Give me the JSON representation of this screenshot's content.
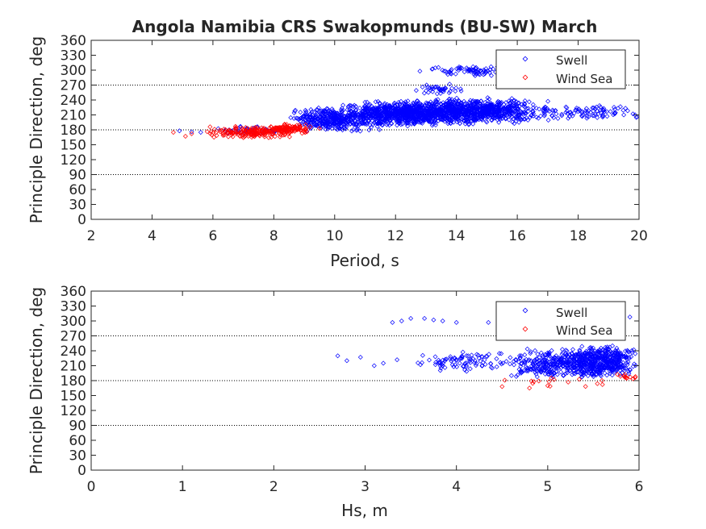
{
  "figure": {
    "title": "Angola Namibia CRS Swakopmunds (BU-SW) March"
  },
  "chart_data": [
    {
      "type": "scatter",
      "xlabel": "Period, s",
      "ylabel": "Principle Direction, deg",
      "xlim": [
        2,
        20
      ],
      "ylim": [
        0,
        360
      ],
      "xticks": [
        "2",
        "4",
        "6",
        "8",
        "10",
        "12",
        "14",
        "16",
        "18",
        "20"
      ],
      "yticks": [
        "0",
        "30",
        "60",
        "90",
        "120",
        "150",
        "180",
        "210",
        "240",
        "270",
        "300",
        "330",
        "360"
      ],
      "reference_lines_deg": [
        90,
        180,
        270
      ],
      "legend": {
        "position": "top-right",
        "entries": [
          "Swell",
          "Wind Sea"
        ]
      },
      "series": [
        {
          "name": "Swell",
          "color": "#0000ff",
          "clusters": [
            {
              "x": [
                8.5,
                11.5
              ],
              "y": [
                175,
                225
              ],
              "n": 380
            },
            {
              "x": [
                10,
                14.5
              ],
              "y": [
                185,
                240
              ],
              "n": 780
            },
            {
              "x": [
                12,
                16.5
              ],
              "y": [
                190,
                245
              ],
              "n": 620
            },
            {
              "x": [
                13,
                17.5
              ],
              "y": [
                195,
                240
              ],
              "n": 260
            },
            {
              "x": [
                16,
                20
              ],
              "y": [
                200,
                230
              ],
              "n": 90
            },
            {
              "x": [
                12.5,
                14.5
              ],
              "y": [
                250,
                275
              ],
              "n": 40
            },
            {
              "x": [
                13,
                16.5
              ],
              "y": [
                285,
                310
              ],
              "n": 90
            },
            {
              "x": [
                6,
                8.5
              ],
              "y": [
                170,
                190
              ],
              "n": 40
            }
          ],
          "points": [
            {
              "x": 5.3,
              "y": 176
            },
            {
              "x": 5.6,
              "y": 175
            },
            {
              "x": 4.9,
              "y": 178
            },
            {
              "x": 19.2,
              "y": 214
            },
            {
              "x": 19.5,
              "y": 210
            },
            {
              "x": 19.8,
              "y": 212
            },
            {
              "x": 12.8,
              "y": 298
            },
            {
              "x": 13.2,
              "y": 302
            }
          ]
        },
        {
          "name": "Wind Sea",
          "color": "#ff0000",
          "clusters": [
            {
              "x": [
                5.8,
                8.8
              ],
              "y": [
                163,
                188
              ],
              "n": 190
            },
            {
              "x": [
                7.5,
                9.3
              ],
              "y": [
                172,
                192
              ],
              "n": 110
            }
          ],
          "points": [
            {
              "x": 4.7,
              "y": 175
            },
            {
              "x": 5.1,
              "y": 167
            },
            {
              "x": 5.3,
              "y": 172
            },
            {
              "x": 9.5,
              "y": 183
            },
            {
              "x": 9.2,
              "y": 186
            }
          ]
        }
      ]
    },
    {
      "type": "scatter",
      "xlabel": "Hs, m",
      "ylabel": "Principle Direction, deg",
      "xlim": [
        0,
        6
      ],
      "ylim": [
        0,
        360
      ],
      "xticks": [
        "0",
        "1",
        "2",
        "3",
        "4",
        "5",
        "6"
      ],
      "yticks": [
        "0",
        "30",
        "60",
        "90",
        "120",
        "150",
        "180",
        "210",
        "240",
        "270",
        "300",
        "330",
        "360"
      ],
      "reference_lines_deg": [
        90,
        180,
        270
      ],
      "legend": {
        "position": "top-right",
        "entries": [
          "Swell",
          "Wind Sea"
        ]
      },
      "series": [
        {
          "name": "Swell",
          "color": "#0000ff",
          "clusters": [
            {
              "x": [
                4.5,
                6.0
              ],
              "y": [
                185,
                245
              ],
              "n": 520
            },
            {
              "x": [
                5.3,
                6.0
              ],
              "y": [
                190,
                255
              ],
              "n": 260
            },
            {
              "x": [
                3.5,
                4.6
              ],
              "y": [
                195,
                240
              ],
              "n": 90
            },
            {
              "x": [
                4.8,
                6.0
              ],
              "y": [
                260,
                310
              ],
              "n": 20
            }
          ],
          "points": [
            {
              "x": 2.7,
              "y": 230
            },
            {
              "x": 2.8,
              "y": 220
            },
            {
              "x": 2.95,
              "y": 227
            },
            {
              "x": 3.1,
              "y": 210
            },
            {
              "x": 3.2,
              "y": 215
            },
            {
              "x": 3.35,
              "y": 222
            },
            {
              "x": 3.3,
              "y": 297
            },
            {
              "x": 3.4,
              "y": 300
            },
            {
              "x": 3.5,
              "y": 305
            },
            {
              "x": 3.65,
              "y": 305
            },
            {
              "x": 3.75,
              "y": 302
            },
            {
              "x": 3.85,
              "y": 300
            },
            {
              "x": 4.0,
              "y": 297
            },
            {
              "x": 4.35,
              "y": 297
            },
            {
              "x": 5.9,
              "y": 308
            }
          ]
        },
        {
          "name": "Wind Sea",
          "color": "#ff0000",
          "clusters": [
            {
              "x": [
                4.4,
                5.8
              ],
              "y": [
                163,
                190
              ],
              "n": 14
            },
            {
              "x": [
                5.7,
                6.0
              ],
              "y": [
                180,
                195
              ],
              "n": 12
            }
          ],
          "points": [
            {
              "x": 4.5,
              "y": 168
            },
            {
              "x": 4.8,
              "y": 165
            },
            {
              "x": 5.0,
              "y": 170
            },
            {
              "x": 5.6,
              "y": 172
            }
          ]
        }
      ]
    }
  ]
}
